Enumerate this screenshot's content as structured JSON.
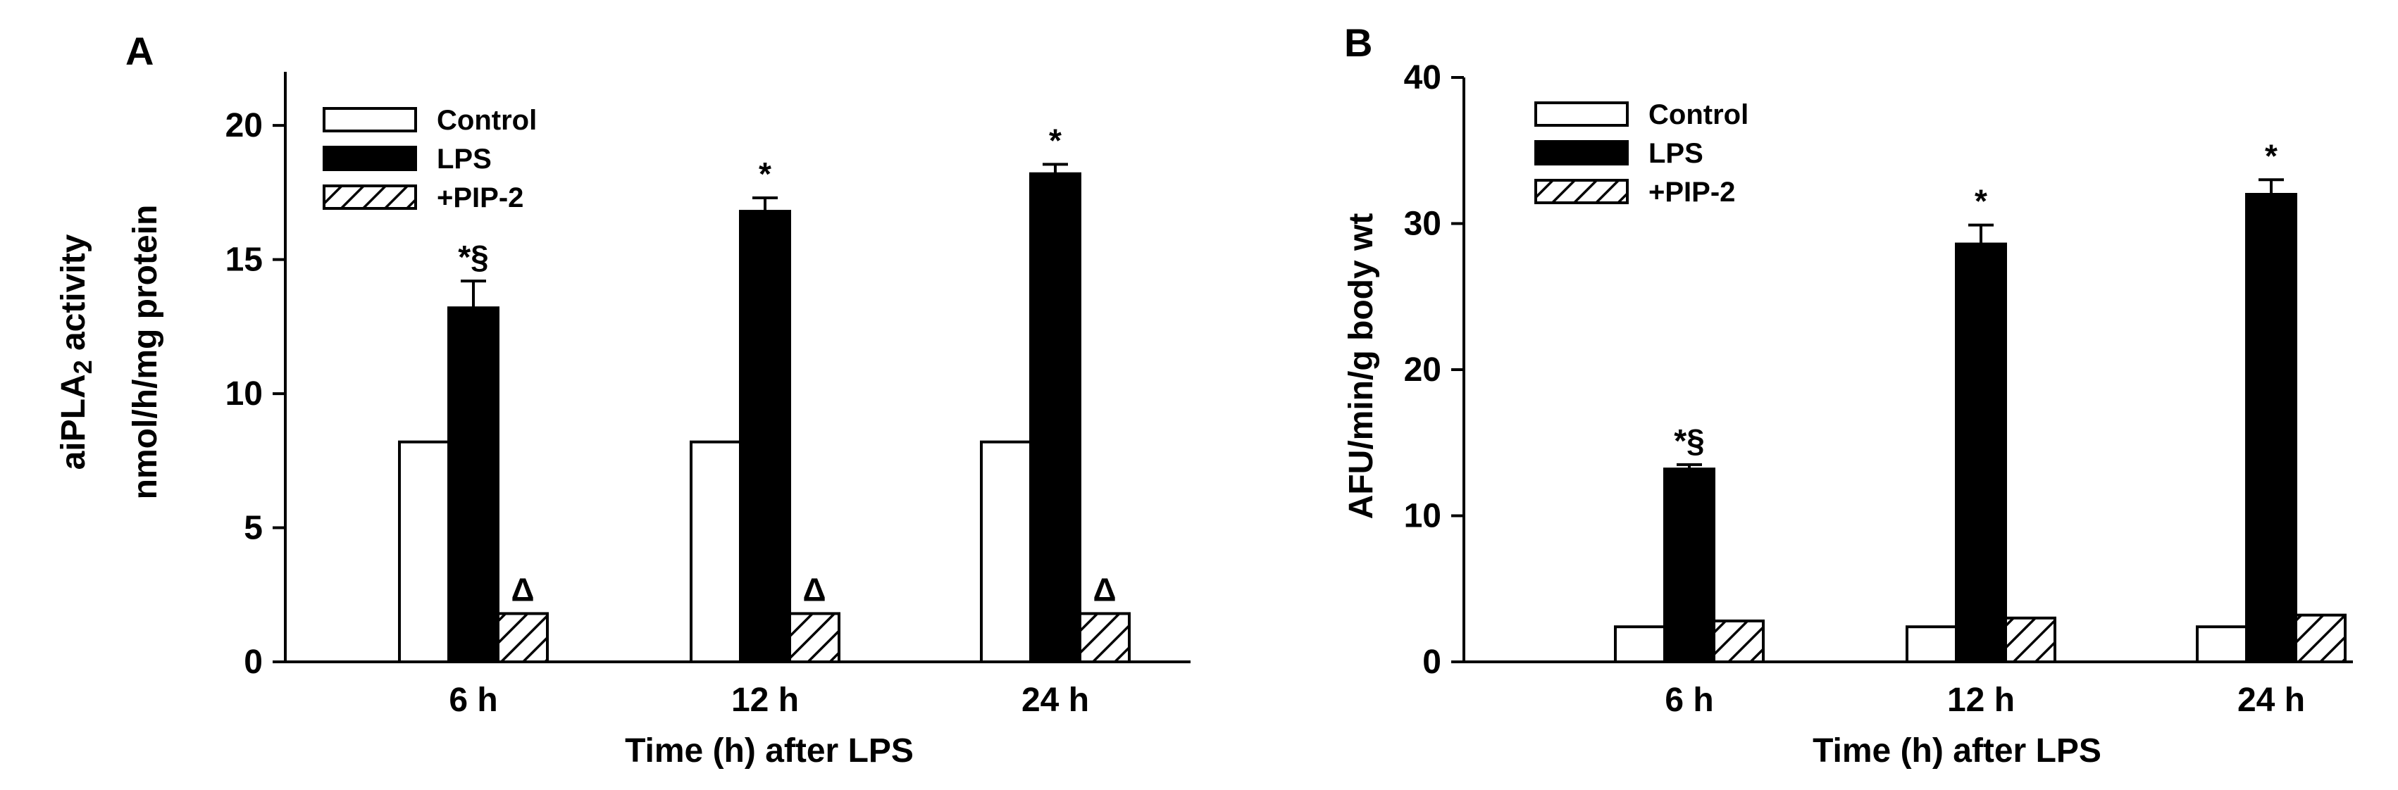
{
  "chart_data": [
    {
      "type": "bar",
      "panel_label": "A",
      "categories": [
        "6 h",
        "12 h",
        "24 h"
      ],
      "xlabel": "Time (h) after LPS",
      "ylabel_line1": "aiPLA",
      "ylabel_sub": "2",
      "ylabel_line1_suffix": " activity",
      "ylabel_line2": "nmol/h/mg protein",
      "ylim": [
        0,
        22
      ],
      "yticks": [
        0,
        5,
        10,
        15,
        20
      ],
      "legend_position": "top-left",
      "series": [
        {
          "name": "Control",
          "fill": "white",
          "values": [
            8.2,
            8.2,
            8.2
          ],
          "errors": [
            0,
            0,
            0
          ],
          "annotations": [
            "",
            "",
            ""
          ]
        },
        {
          "name": "LPS",
          "fill": "black",
          "values": [
            13.2,
            16.8,
            18.2
          ],
          "errors": [
            1.0,
            0.5,
            0.35
          ],
          "annotations": [
            "*§",
            "*",
            "*"
          ]
        },
        {
          "name": "+PIP-2",
          "fill": "hatch",
          "values": [
            1.8,
            1.8,
            1.8
          ],
          "errors": [
            0,
            0,
            0
          ],
          "annotations": [
            "Δ",
            "Δ",
            "Δ"
          ]
        }
      ]
    },
    {
      "type": "bar",
      "panel_label": "B",
      "categories": [
        "6 h",
        "12 h",
        "24 h"
      ],
      "xlabel": "Time (h) after LPS",
      "ylabel": "AFU/min/g body wt",
      "ylim": [
        0,
        40
      ],
      "yticks": [
        0,
        10,
        20,
        30,
        40
      ],
      "legend_position": "top-left",
      "series": [
        {
          "name": "Control",
          "fill": "white",
          "values": [
            2.4,
            2.4,
            2.4
          ],
          "errors": [
            0,
            0,
            0
          ],
          "annotations": [
            "",
            "",
            ""
          ]
        },
        {
          "name": "LPS",
          "fill": "black",
          "values": [
            13.2,
            28.6,
            32.0
          ],
          "errors": [
            0.3,
            1.3,
            1.0
          ],
          "annotations": [
            "*§",
            "*",
            "*"
          ]
        },
        {
          "name": "+PIP-2",
          "fill": "hatch",
          "values": [
            2.8,
            3.0,
            3.2
          ],
          "errors": [
            0,
            0,
            0
          ],
          "annotations": [
            "",
            "",
            ""
          ]
        }
      ]
    }
  ]
}
